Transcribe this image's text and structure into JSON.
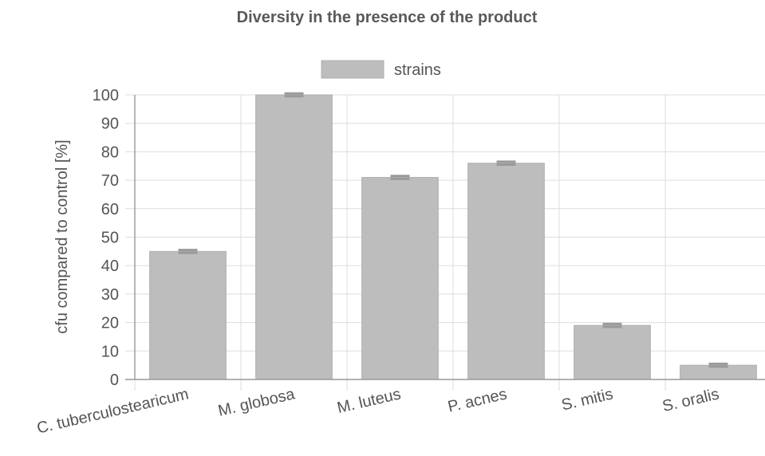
{
  "chart_data": {
    "type": "bar",
    "title": "Diversity in the presence of the product",
    "ylabel": "cfu compared to control [%]",
    "xlabel": "",
    "ylim": [
      0,
      100
    ],
    "yticks": [
      0,
      10,
      20,
      30,
      40,
      50,
      60,
      70,
      80,
      90,
      100
    ],
    "grid": true,
    "legend_position": "top-center",
    "categories": [
      "C. tuberculostearicum",
      "M. globosa",
      "M. luteus",
      "P. acnes",
      "S. mitis",
      "S. oralis"
    ],
    "series": [
      {
        "name": "strains",
        "color": "#bdbdbd",
        "values": [
          45,
          100,
          71,
          76,
          19,
          5
        ],
        "error": [
          0.5,
          0.5,
          0.5,
          0.5,
          0.5,
          0.5
        ]
      }
    ]
  }
}
